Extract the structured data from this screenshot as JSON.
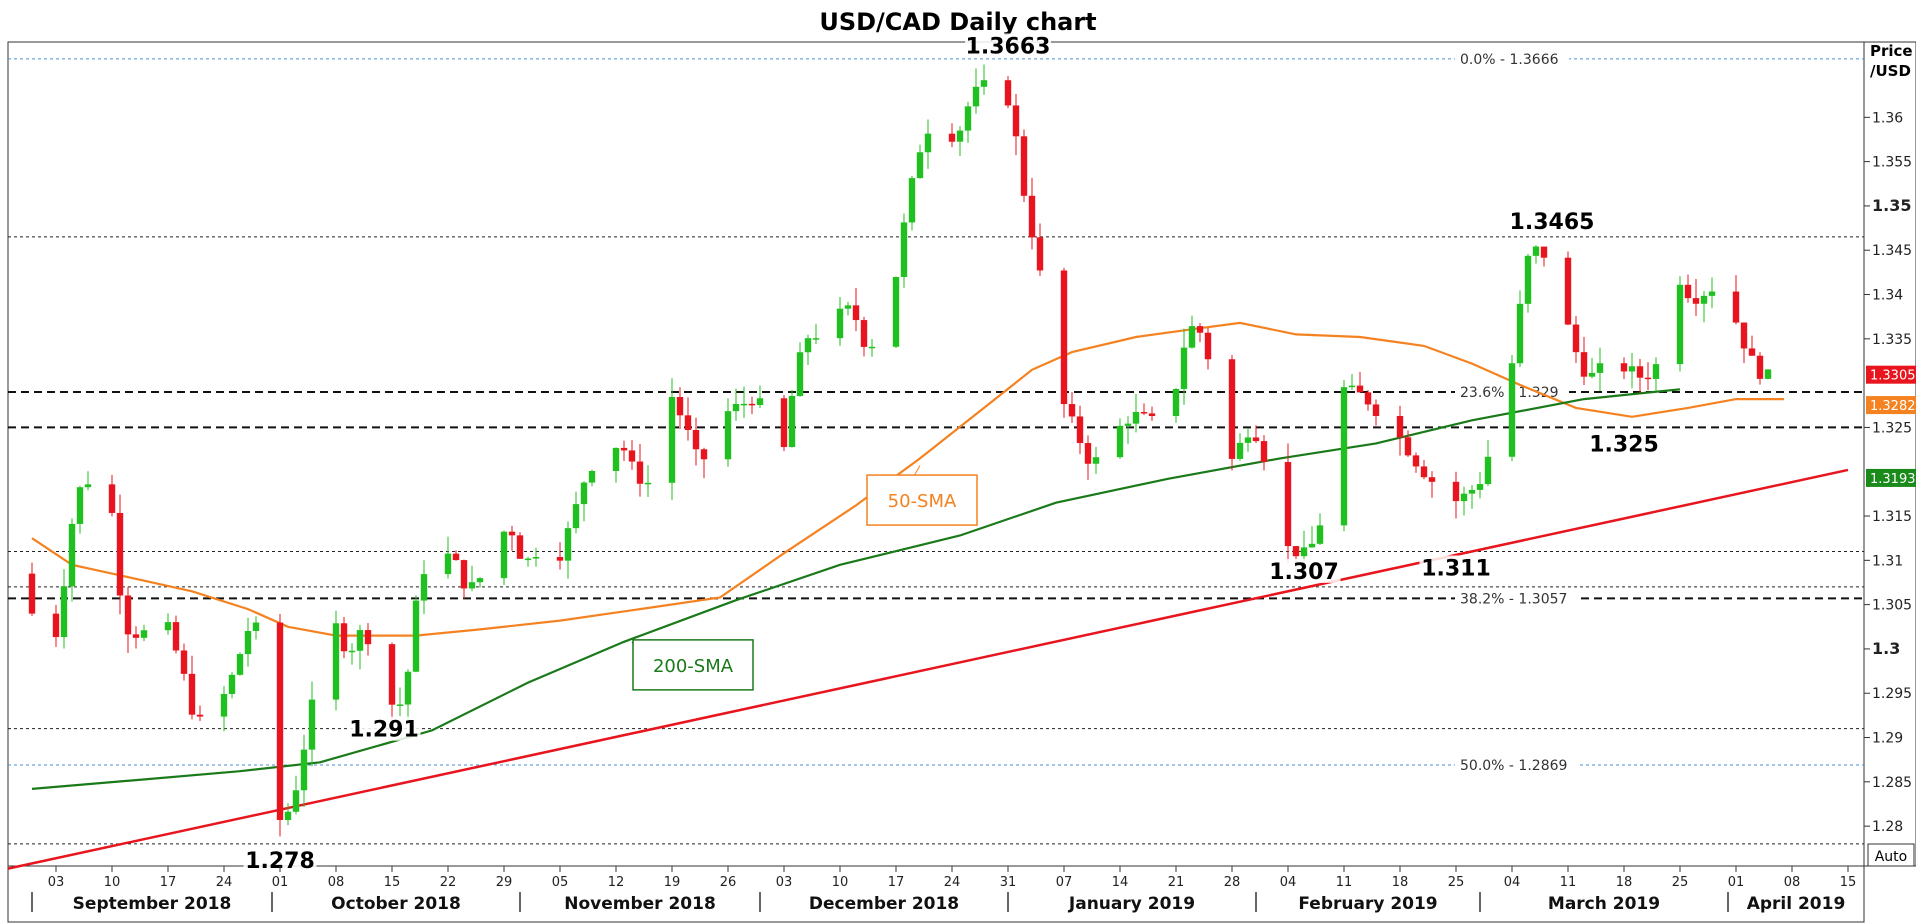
{
  "chart_data": {
    "type": "candlestick",
    "title": "USD/CAD Daily chart",
    "y_axis_label_line1": "Price",
    "y_axis_label_line2": "/USD",
    "auto_label": "Auto",
    "ylim": [
      1.2755,
      1.3685
    ],
    "y_ticks": [
      {
        "value": 1.36,
        "label": "1.36",
        "major": false
      },
      {
        "value": 1.355,
        "label": "1.355",
        "major": false
      },
      {
        "value": 1.35,
        "label": "1.35",
        "major": true
      },
      {
        "value": 1.345,
        "label": "1.345",
        "major": false
      },
      {
        "value": 1.34,
        "label": "1.34",
        "major": false
      },
      {
        "value": 1.335,
        "label": "1.335",
        "major": false
      },
      {
        "value": 1.325,
        "label": "1.325",
        "major": false
      },
      {
        "value": 1.315,
        "label": "1.315",
        "major": false
      },
      {
        "value": 1.31,
        "label": "1.31",
        "major": false
      },
      {
        "value": 1.305,
        "label": "1.305",
        "major": false
      },
      {
        "value": 1.3,
        "label": "1.3",
        "major": true
      },
      {
        "value": 1.295,
        "label": "1.295",
        "major": false
      },
      {
        "value": 1.29,
        "label": "1.29",
        "major": false
      },
      {
        "value": 1.285,
        "label": "1.285",
        "major": false
      },
      {
        "value": 1.28,
        "label": "1.28",
        "major": false
      }
    ],
    "x_day_ticks": [
      {
        "label": "03",
        "day": 3
      },
      {
        "label": "10",
        "day": 10
      },
      {
        "label": "17",
        "day": 17
      },
      {
        "label": "24",
        "day": 24
      },
      {
        "label": "01",
        "day": 31
      },
      {
        "label": "08",
        "day": 38
      },
      {
        "label": "15",
        "day": 45
      },
      {
        "label": "22",
        "day": 52
      },
      {
        "label": "29",
        "day": 59
      },
      {
        "label": "05",
        "day": 66
      },
      {
        "label": "12",
        "day": 73
      },
      {
        "label": "19",
        "day": 80
      },
      {
        "label": "26",
        "day": 87
      },
      {
        "label": "03",
        "day": 94
      },
      {
        "label": "10",
        "day": 101
      },
      {
        "label": "17",
        "day": 108
      },
      {
        "label": "24",
        "day": 115
      },
      {
        "label": "31",
        "day": 122
      },
      {
        "label": "07",
        "day": 129
      },
      {
        "label": "14",
        "day": 136
      },
      {
        "label": "21",
        "day": 143
      },
      {
        "label": "28",
        "day": 150
      },
      {
        "label": "04",
        "day": 157
      },
      {
        "label": "11",
        "day": 164
      },
      {
        "label": "18",
        "day": 171
      },
      {
        "label": "25",
        "day": 178
      },
      {
        "label": "04",
        "day": 185
      },
      {
        "label": "11",
        "day": 192
      },
      {
        "label": "18",
        "day": 199
      },
      {
        "label": "25",
        "day": 206
      },
      {
        "label": "01",
        "day": 213
      },
      {
        "label": "08",
        "day": 220
      },
      {
        "label": "15",
        "day": 227
      }
    ],
    "x_months": [
      {
        "label": "September 2018",
        "start_day": 0
      },
      {
        "label": "October 2018",
        "start_day": 30
      },
      {
        "label": "November 2018",
        "start_day": 61
      },
      {
        "label": "December 2018",
        "start_day": 91
      },
      {
        "label": "January 2019",
        "start_day": 122
      },
      {
        "label": "February 2019",
        "start_day": 153
      },
      {
        "label": "March 2019",
        "start_day": 181
      },
      {
        "label": "April 2019",
        "start_day": 212
      }
    ],
    "price_anchors": [
      [
        0,
        1.3075
      ],
      [
        2,
        1.2935
      ],
      [
        4,
        1.3045
      ],
      [
        6,
        1.3175
      ],
      [
        8,
        1.3195
      ],
      [
        10,
        1.3195
      ],
      [
        12,
        1.3025
      ],
      [
        14,
        1.3015
      ],
      [
        17,
        1.3035
      ],
      [
        19,
        1.2985
      ],
      [
        21,
        1.2915
      ],
      [
        23,
        1.2925
      ],
      [
        25,
        1.2955
      ],
      [
        28,
        1.3035
      ],
      [
        30,
        1.2985
      ],
      [
        31,
        1.2802
      ],
      [
        33,
        1.2822
      ],
      [
        36,
        1.2958
      ],
      [
        38,
        1.3035
      ],
      [
        40,
        1.2995
      ],
      [
        42,
        1.3025
      ],
      [
        44,
        1.2978
      ],
      [
        45,
        1.2938
      ],
      [
        47,
        1.2938
      ],
      [
        49,
        1.3085
      ],
      [
        51,
        1.3105
      ],
      [
        53,
        1.3105
      ],
      [
        55,
        1.3065
      ],
      [
        58,
        1.3095
      ],
      [
        60,
        1.3145
      ],
      [
        62,
        1.3095
      ],
      [
        64,
        1.3115
      ],
      [
        66,
        1.3095
      ],
      [
        68,
        1.3145
      ],
      [
        70,
        1.3205
      ],
      [
        72,
        1.3215
      ],
      [
        74,
        1.3235
      ],
      [
        76,
        1.3195
      ],
      [
        78,
        1.3185
      ],
      [
        80,
        1.3295
      ],
      [
        82,
        1.3255
      ],
      [
        84,
        1.3205
      ],
      [
        87,
        1.3265
      ],
      [
        89,
        1.3275
      ],
      [
        91,
        1.3285
      ],
      [
        93,
        1.3245
      ],
      [
        94,
        1.3195
      ],
      [
        96,
        1.3315
      ],
      [
        98,
        1.3365
      ],
      [
        100,
        1.3325
      ],
      [
        101,
        1.3375
      ],
      [
        103,
        1.3385
      ],
      [
        105,
        1.3335
      ],
      [
        108,
        1.3395
      ],
      [
        110,
        1.3505
      ],
      [
        112,
        1.3585
      ],
      [
        114,
        1.3595
      ],
      [
        116,
        1.3575
      ],
      [
        118,
        1.3625
      ],
      [
        120,
        1.3638
      ],
      [
        122,
        1.3635
      ],
      [
        123,
        1.3605
      ],
      [
        125,
        1.3485
      ],
      [
        126,
        1.3455
      ],
      [
        128,
        1.3325
      ],
      [
        129,
        1.3285
      ],
      [
        131,
        1.3245
      ],
      [
        133,
        1.3205
      ],
      [
        135,
        1.3235
      ],
      [
        138,
        1.3265
      ],
      [
        141,
        1.3255
      ],
      [
        143,
        1.3275
      ],
      [
        145,
        1.3365
      ],
      [
        147,
        1.3355
      ],
      [
        150,
        1.3205
      ],
      [
        153,
        1.3255
      ],
      [
        155,
        1.3205
      ],
      [
        157,
        1.3115
      ],
      [
        160,
        1.3105
      ],
      [
        162,
        1.3155
      ],
      [
        164,
        1.3295
      ],
      [
        167,
        1.3285
      ],
      [
        169,
        1.3265
      ],
      [
        171,
        1.3245
      ],
      [
        174,
        1.3205
      ],
      [
        176,
        1.3185
      ],
      [
        178,
        1.3165
      ],
      [
        180,
        1.3175
      ],
      [
        182,
        1.3195
      ],
      [
        184,
        1.3285
      ],
      [
        186,
        1.3335
      ],
      [
        187,
        1.3435
      ],
      [
        189,
        1.3455
      ],
      [
        191,
        1.3415
      ],
      [
        193,
        1.3345
      ],
      [
        195,
        1.3305
      ],
      [
        198,
        1.3325
      ],
      [
        200,
        1.3315
      ],
      [
        202,
        1.3305
      ],
      [
        204,
        1.3325
      ],
      [
        206,
        1.3425
      ],
      [
        208,
        1.3395
      ],
      [
        210,
        1.3405
      ],
      [
        212,
        1.3415
      ],
      [
        214,
        1.3355
      ],
      [
        216,
        1.3315
      ],
      [
        218,
        1.3305
      ]
    ],
    "sma50_points": [
      [
        0,
        1.3125
      ],
      [
        5,
        1.3095
      ],
      [
        10,
        1.3085
      ],
      [
        20,
        1.3065
      ],
      [
        27,
        1.3045
      ],
      [
        32,
        1.3025
      ],
      [
        38,
        1.3015
      ],
      [
        48,
        1.3015
      ],
      [
        56,
        1.3022
      ],
      [
        66,
        1.3032
      ],
      [
        76,
        1.3045
      ],
      [
        86,
        1.3058
      ],
      [
        94,
        1.3108
      ],
      [
        103,
        1.3162
      ],
      [
        111,
        1.3215
      ],
      [
        119,
        1.3272
      ],
      [
        125,
        1.3315
      ],
      [
        130,
        1.3335
      ],
      [
        138,
        1.3352
      ],
      [
        146,
        1.3362
      ],
      [
        151,
        1.3368
      ],
      [
        158,
        1.3355
      ],
      [
        166,
        1.3352
      ],
      [
        174,
        1.3342
      ],
      [
        180,
        1.3322
      ],
      [
        186,
        1.3298
      ],
      [
        193,
        1.3272
      ],
      [
        200,
        1.3262
      ],
      [
        207,
        1.3272
      ],
      [
        213,
        1.3282
      ],
      [
        219,
        1.3282
      ]
    ],
    "sma200_points": [
      [
        0,
        1.2842
      ],
      [
        13,
        1.2852
      ],
      [
        26,
        1.2862
      ],
      [
        36,
        1.2872
      ],
      [
        50,
        1.2908
      ],
      [
        62,
        1.2962
      ],
      [
        74,
        1.3008
      ],
      [
        88,
        1.3055
      ],
      [
        101,
        1.3095
      ],
      [
        116,
        1.3128
      ],
      [
        128,
        1.3165
      ],
      [
        142,
        1.3192
      ],
      [
        156,
        1.3215
      ],
      [
        168,
        1.3232
      ],
      [
        180,
        1.3258
      ],
      [
        194,
        1.3282
      ],
      [
        206,
        1.3293
      ],
      [
        219,
        1.3193
      ]
    ],
    "trendline": {
      "label": "",
      "start": [
        -3,
        1.2752
      ],
      "end": [
        227,
        1.3202
      ],
      "color": "#e8141e"
    },
    "horizontal_levels": [
      {
        "value": 1.3666,
        "style": "blue-dotted",
        "label": "0.0% - 1.3666"
      },
      {
        "value": 1.3465,
        "style": "black-dotted",
        "label": ""
      },
      {
        "value": 1.329,
        "style": "black-dashed",
        "label": "23.6% - 1.329"
      },
      {
        "value": 1.325,
        "style": "black-dashed",
        "label": ""
      },
      {
        "value": 1.311,
        "style": "black-dotted",
        "label": ""
      },
      {
        "value": 1.307,
        "style": "black-dotted",
        "label": ""
      },
      {
        "value": 1.3057,
        "style": "black-dashed",
        "label": "38.2% - 1.3057"
      },
      {
        "value": 1.2869,
        "style": "blue-dotted",
        "label": "50.0% - 1.2869"
      },
      {
        "value": 1.291,
        "style": "black-dotted",
        "label": ""
      },
      {
        "value": 1.278,
        "style": "black-dotted",
        "label": ""
      }
    ],
    "annotations": [
      {
        "text": "1.3663",
        "day": 122,
        "value": 1.3663,
        "placement": "above"
      },
      {
        "text": "1.3465",
        "day": 190,
        "value": 1.3465,
        "placement": "above"
      },
      {
        "text": "1.325",
        "day": 199,
        "value": 1.325,
        "placement": "below"
      },
      {
        "text": "1.311",
        "day": 178,
        "value": 1.311,
        "placement": "below"
      },
      {
        "text": "1.307",
        "day": 159,
        "value": 1.307,
        "placement": "above"
      },
      {
        "text": "1.291",
        "day": 44,
        "value": 1.291,
        "placement": "on"
      },
      {
        "text": "1.278",
        "day": 31,
        "value": 1.278,
        "placement": "below"
      }
    ],
    "callouts": [
      {
        "text": "50-SMA",
        "series": "sma50",
        "color": "#f58220"
      },
      {
        "text": "200-SMA",
        "series": "sma200",
        "color": "#1a7a1a"
      }
    ],
    "price_tags": [
      {
        "text": "1.3305",
        "value": 1.3305,
        "color": "#e8141e"
      },
      {
        "text": "1.3282",
        "value": 1.3282,
        "color": "#f58220"
      },
      {
        "text": "1.3193",
        "value": 1.3193,
        "color": "#1a8a1a"
      }
    ],
    "colors": {
      "up": "#20c020",
      "down": "#e8141e",
      "sma50": "#f58220",
      "sma200": "#1a7a1a",
      "fib": "#4a90d9"
    }
  }
}
